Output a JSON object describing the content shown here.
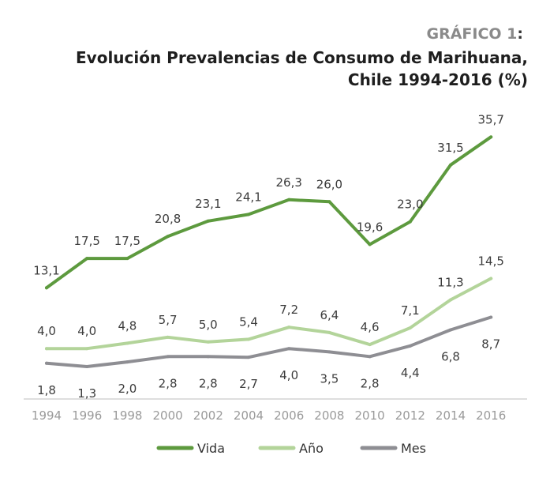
{
  "header": {
    "kicker": "GRÁFICO 1",
    "kicker_suffix": ":",
    "title_line1": "Evolución Prevalencias de Consumo de Marihuana,",
    "title_line2": "Chile 1994-2016 (%)"
  },
  "chart_data": {
    "type": "line",
    "title": "Evolución Prevalencias de Consumo de Marihuana, Chile 1994-2016 (%)",
    "x": [
      "1994",
      "1996",
      "1998",
      "2000",
      "2002",
      "2004",
      "2006",
      "2008",
      "2010",
      "2012",
      "2014",
      "2016"
    ],
    "series": [
      {
        "name": "Vida",
        "color": "#5d9a3e",
        "values": [
          13.1,
          17.5,
          17.5,
          20.8,
          23.1,
          24.1,
          26.3,
          26.0,
          19.6,
          23.0,
          31.5,
          35.7
        ],
        "labels": [
          "13,1",
          "17,5",
          "17,5",
          "20,8",
          "23,1",
          "24,1",
          "26,3",
          "26,0",
          "19,6",
          "23,0",
          "31,5",
          "35,7"
        ],
        "label_position": "above"
      },
      {
        "name": "Año",
        "color": "#b3d49a",
        "values": [
          4.0,
          4.0,
          4.8,
          5.7,
          5.0,
          5.4,
          7.2,
          6.4,
          4.6,
          7.1,
          11.3,
          14.5
        ],
        "labels": [
          "4,0",
          "4,0",
          "4,8",
          "5,7",
          "5,0",
          "5,4",
          "7,2",
          "6,4",
          "4,6",
          "7,1",
          "11,3",
          "14,5"
        ],
        "label_position": "above"
      },
      {
        "name": "Mes",
        "color": "#8e8e93",
        "values": [
          1.8,
          1.3,
          2.0,
          2.8,
          2.8,
          2.7,
          4.0,
          3.5,
          2.8,
          4.4,
          6.8,
          8.7
        ],
        "labels": [
          "1,8",
          "1,3",
          "2,0",
          "2,8",
          "2,8",
          "2,7",
          "4,0",
          "3,5",
          "2,8",
          "4,4",
          "6,8",
          "8,7"
        ],
        "label_position": "below"
      }
    ],
    "xlabel": "",
    "ylabel": "",
    "ylim": [
      0,
      40
    ],
    "grid": false,
    "legend": "bottom-center"
  }
}
